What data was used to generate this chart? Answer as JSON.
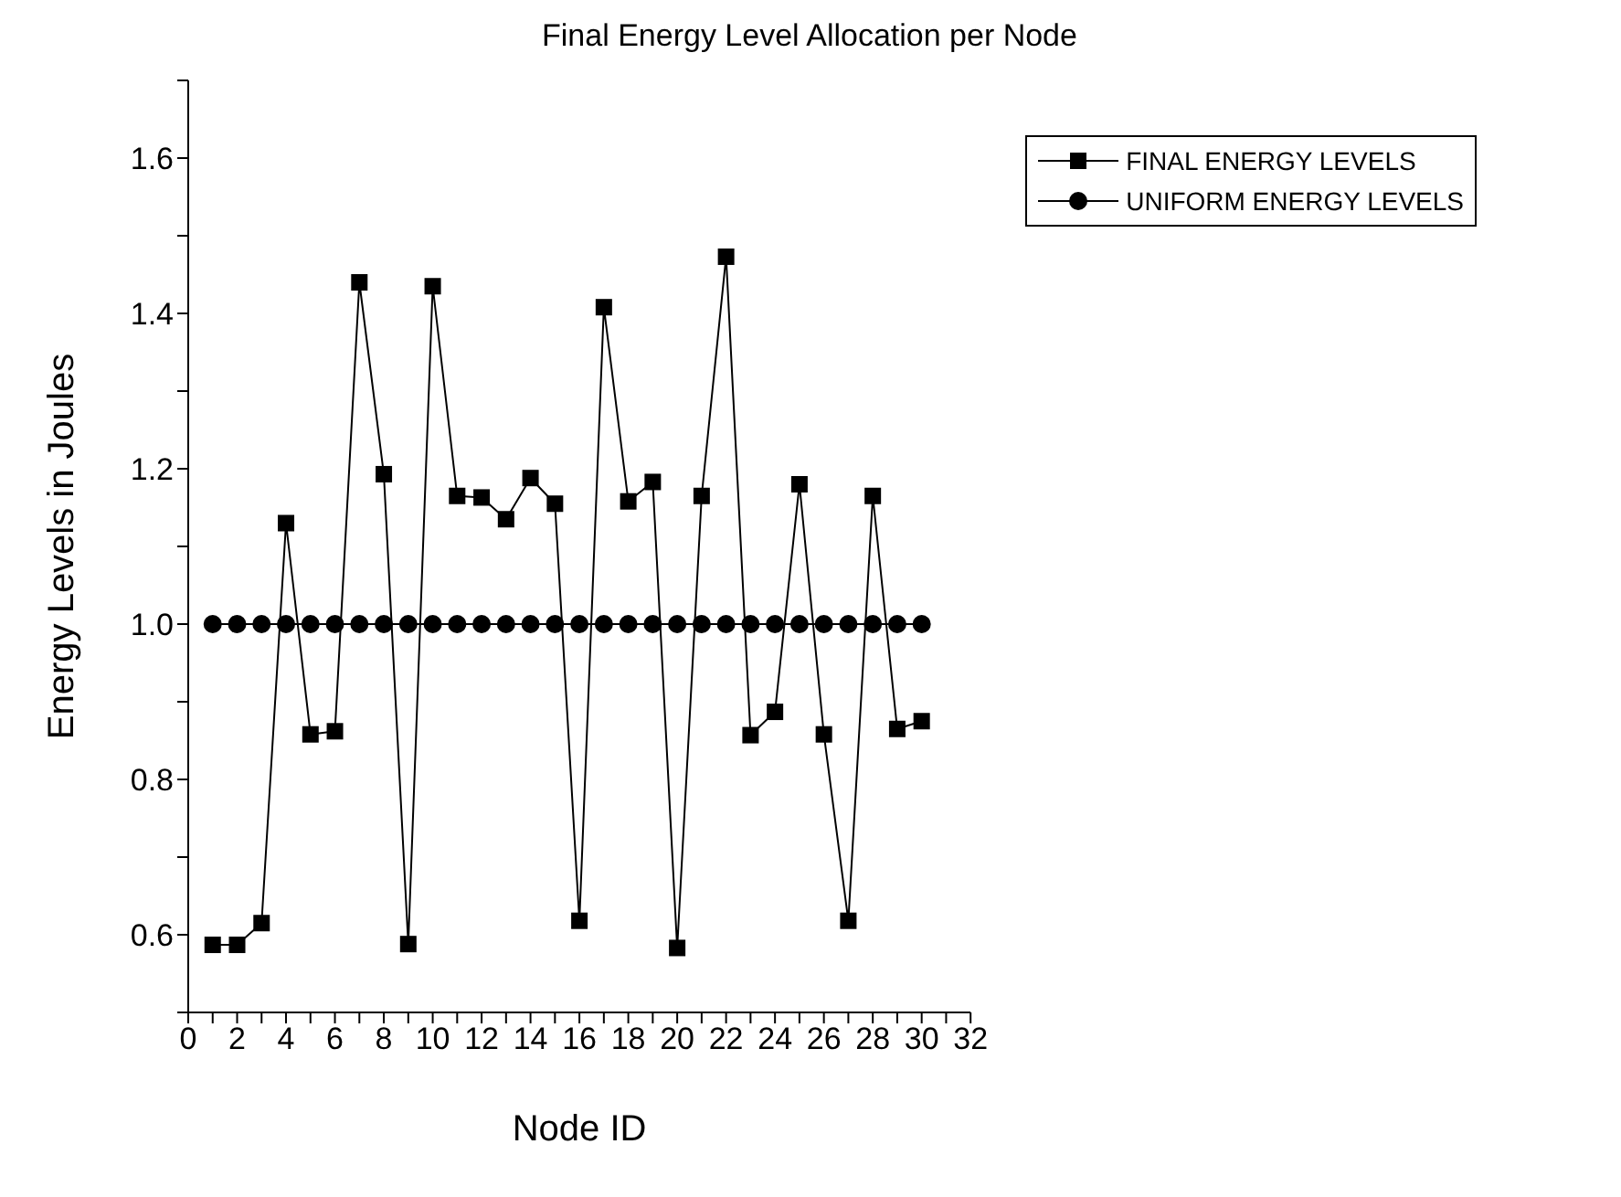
{
  "chart_data": {
    "type": "line",
    "title": "Final Energy Level Allocation per Node",
    "xlabel": "Node ID",
    "ylabel": "Energy Levels in Joules",
    "x": [
      1,
      2,
      3,
      4,
      5,
      6,
      7,
      8,
      9,
      10,
      11,
      12,
      13,
      14,
      15,
      16,
      17,
      18,
      19,
      20,
      21,
      22,
      23,
      24,
      25,
      26,
      27,
      28,
      29,
      30
    ],
    "series": [
      {
        "name": "FINAL ENERGY LEVELS",
        "color": "#000000",
        "marker": "square",
        "values": [
          0.587,
          0.587,
          0.615,
          1.13,
          0.858,
          0.862,
          1.44,
          1.193,
          0.588,
          1.435,
          1.165,
          1.163,
          1.135,
          1.188,
          1.155,
          0.618,
          1.408,
          1.158,
          1.183,
          0.583,
          1.165,
          1.473,
          0.857,
          0.887,
          1.18,
          0.858,
          0.618,
          1.165,
          0.865,
          0.875
        ]
      },
      {
        "name": "UNIFORM ENERGY LEVELS",
        "color": "#000000",
        "marker": "circle",
        "values": [
          1,
          1,
          1,
          1,
          1,
          1,
          1,
          1,
          1,
          1,
          1,
          1,
          1,
          1,
          1,
          1,
          1,
          1,
          1,
          1,
          1,
          1,
          1,
          1,
          1,
          1,
          1,
          1,
          1,
          1
        ]
      }
    ],
    "xlim": [
      0,
      32
    ],
    "xticks": [
      0,
      {
        "value": 1,
        "label": null
      },
      2,
      {
        "value": 3,
        "label": null
      },
      4,
      {
        "value": 5,
        "label": null
      },
      6,
      {
        "value": 7,
        "label": null
      },
      8,
      {
        "value": 9,
        "label": null
      },
      10,
      {
        "value": 11,
        "label": null
      },
      12,
      {
        "value": 13,
        "label": null
      },
      14,
      {
        "value": 15,
        "label": null
      },
      16,
      {
        "value": 17,
        "label": null
      },
      18,
      {
        "value": 19,
        "label": null
      },
      20,
      {
        "value": 21,
        "label": null
      },
      22,
      {
        "value": 23,
        "label": null
      },
      24,
      {
        "value": 25,
        "label": null
      },
      26,
      {
        "value": 27,
        "label": null
      },
      28,
      {
        "value": 29,
        "label": null
      },
      30,
      {
        "value": 31,
        "label": null
      },
      32
    ],
    "ylim": [
      0.5,
      1.7
    ],
    "yticks": [
      {
        "value": 0.5,
        "label": null
      },
      {
        "value": 0.6,
        "label": "0.6"
      },
      {
        "value": 0.7,
        "label": null
      },
      {
        "value": 0.8,
        "label": "0.8"
      },
      {
        "value": 0.9,
        "label": null
      },
      {
        "value": 1.0,
        "label": "1.0"
      },
      {
        "value": 1.1,
        "label": null
      },
      {
        "value": 1.2,
        "label": "1.2"
      },
      {
        "value": 1.3,
        "label": null
      },
      {
        "value": 1.4,
        "label": "1.4"
      },
      {
        "value": 1.5,
        "label": null
      },
      {
        "value": 1.6,
        "label": "1.6"
      },
      {
        "value": 1.7,
        "label": null
      }
    ],
    "grid": false,
    "legend": "top right",
    "line_style": "solid"
  }
}
